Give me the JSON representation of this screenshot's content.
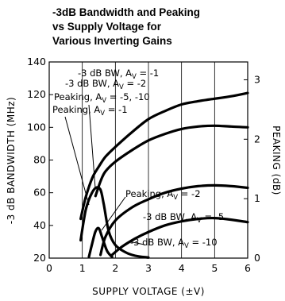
{
  "chart_data": {
    "type": "line",
    "title_lines": [
      "-3dB Bandwidth and Peaking",
      "vs Supply Voltage for",
      "Various Inverting Gains"
    ],
    "xlabel": "SUPPLY VOLTAGE (±V)",
    "ylabel_left": "-3 dB BANDWIDTH (MHz)",
    "ylabel_right": "PEAKING (dB)",
    "xlim": [
      0,
      6
    ],
    "ylim_left": [
      20,
      140
    ],
    "ylim_right": [
      0,
      3.3
    ],
    "x_ticks": [
      "0",
      "1",
      "2",
      "3",
      "4",
      "5",
      "6"
    ],
    "y_left_ticks": [
      "20",
      "40",
      "60",
      "80",
      "100",
      "120",
      "140"
    ],
    "y_right_ticks": [
      "0",
      "1",
      "2",
      "3"
    ],
    "grid": "vertical",
    "bandwidth_series": [
      {
        "x": [
          0.95,
          1.1,
          1.3,
          1.5,
          1.7,
          2,
          2.5,
          3,
          3.5,
          4,
          4.5,
          5,
          5.5,
          6
        ],
        "y": [
          44,
          57,
          69,
          76,
          82,
          88,
          97,
          105,
          110,
          114,
          116,
          117.5,
          119,
          121
        ]
      },
      {
        "x": [
          1.4,
          1.55,
          1.7,
          2,
          2.5,
          3,
          3.5,
          4,
          4.5,
          5,
          5.5,
          6
        ],
        "y": [
          58,
          67,
          73,
          79,
          86,
          92,
          96,
          99,
          100.5,
          101,
          100.5,
          100
        ]
      },
      {
        "x": [
          1.55,
          1.7,
          2,
          2.5,
          3,
          3.5,
          4,
          4.5,
          5,
          5.5,
          6
        ],
        "y": [
          22,
          33,
          43,
          51,
          56,
          60,
          62.5,
          64,
          64.5,
          64,
          63
        ]
      },
      {
        "x": [
          1.9,
          2.2,
          2.6,
          3,
          3.5,
          4,
          4.5,
          5,
          5.5,
          6
        ],
        "y": [
          22,
          27,
          32,
          36,
          40,
          42.5,
          44,
          44.5,
          43.5,
          42
        ]
      }
    ],
    "peaking_series": [
      {
        "x": [
          0.95,
          1.1,
          1.25,
          1.4,
          1.55,
          1.65,
          1.8,
          2,
          2.3,
          2.6,
          3
        ],
        "y": [
          0.3,
          0.8,
          1.05,
          1.18,
          1.15,
          0.9,
          0.45,
          0.22,
          0.1,
          0.04,
          0.01
        ]
      },
      {
        "x": [
          1.2,
          1.3,
          1.4,
          1.5,
          1.6,
          1.75,
          1.9
        ],
        "y": [
          0.02,
          0.25,
          0.45,
          0.5,
          0.35,
          0.12,
          0.02
        ]
      }
    ],
    "annotations": [
      {
        "label": "-3 dB BW, A",
        "sub": "V",
        "suffix": " = -1"
      },
      {
        "label": "-3 dB BW, A",
        "sub": "V",
        "suffix": " = -2"
      },
      {
        "label": "Peaking, A",
        "sub": "V",
        "suffix": " = -5, -10"
      },
      {
        "label": "Peaking, A",
        "sub": "V",
        "suffix": " = -1"
      },
      {
        "label": "Peaking, A",
        "sub": "V",
        "suffix": " = -2"
      },
      {
        "label": "-3 dB BW, A",
        "sub": "V",
        "suffix": " = -5"
      },
      {
        "label": "-3 dB BW, A",
        "sub": "V",
        "suffix": " = -10"
      }
    ]
  }
}
